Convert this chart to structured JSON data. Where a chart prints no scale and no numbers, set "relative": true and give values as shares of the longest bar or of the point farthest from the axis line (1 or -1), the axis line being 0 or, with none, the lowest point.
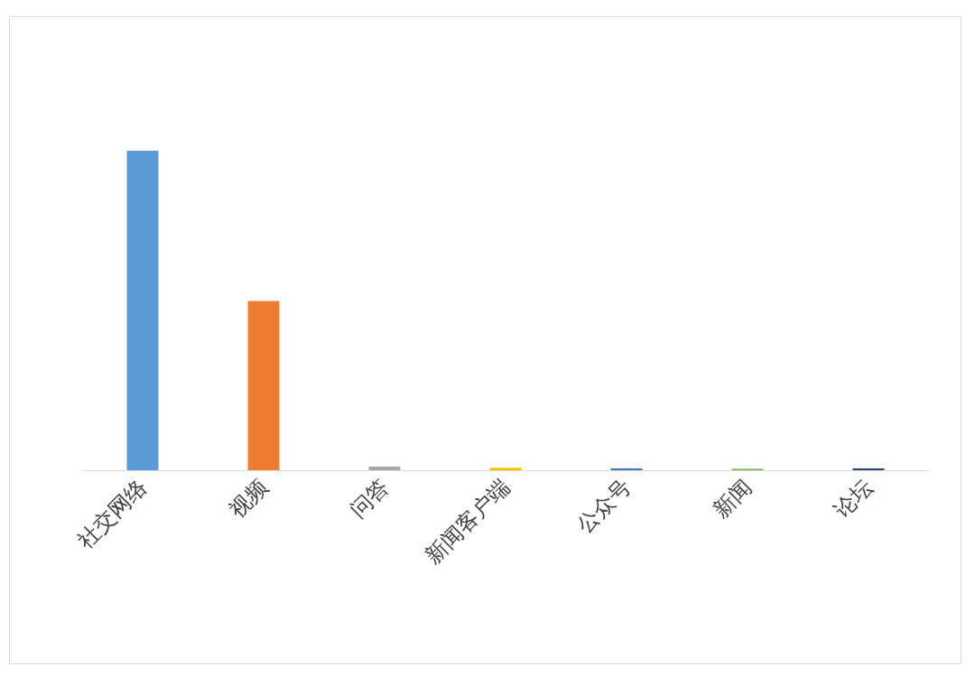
{
  "chart_data": {
    "type": "bar",
    "relative": true,
    "categories": [
      "社交网络",
      "视频",
      "问答",
      "新闻客户端",
      "公众号",
      "新闻",
      "论坛"
    ],
    "values": [
      1,
      0.53,
      0.011,
      0.008,
      0.006,
      0.004,
      0.006
    ],
    "colors": [
      "#5b9bd5",
      "#ed7d31",
      "#a5a5a5",
      "#ffc000",
      "#4472c4",
      "#70ad47",
      "#264478"
    ]
  }
}
